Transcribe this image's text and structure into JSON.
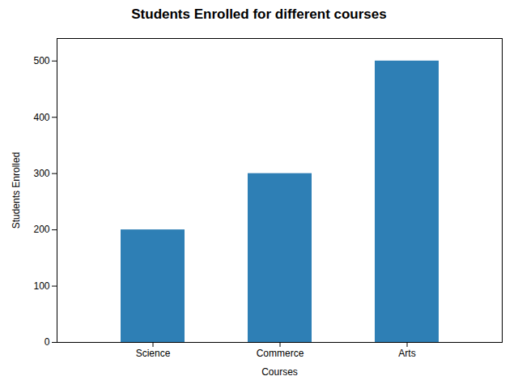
{
  "chart_data": {
    "type": "bar",
    "title": "Students Enrolled for different courses",
    "xlabel": "Courses",
    "ylabel": "Students Enrolled",
    "categories": [
      "Science",
      "Commerce",
      "Arts"
    ],
    "values": [
      200,
      300,
      500
    ],
    "color": "#2e7fb5",
    "ylim": [
      0,
      540
    ],
    "yticks": [
      0,
      100,
      200,
      300,
      400,
      500
    ]
  }
}
